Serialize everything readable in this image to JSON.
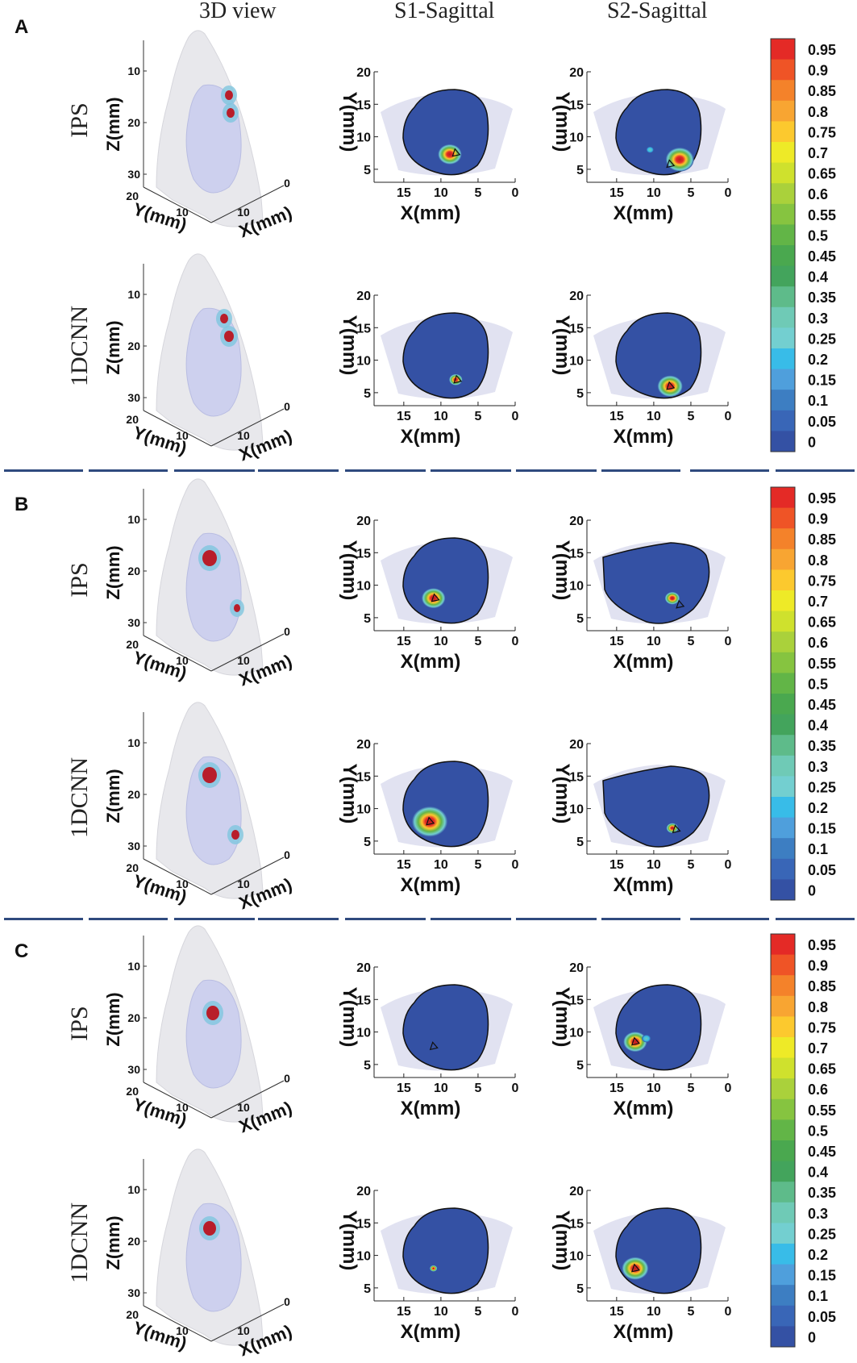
{
  "columns": [
    "3D view",
    "S1-Sagittal",
    "S2-Sagittal"
  ],
  "panels": [
    {
      "letter": "A",
      "rows": [
        {
          "method": "IPS",
          "s1": {
            "blobs": [
              {
                "cx": 8.8,
                "cy": 7.3,
                "r": 1.6
              }
            ],
            "mark": [
              8,
              7.5
            ]
          },
          "s2": {
            "blobs": [
              {
                "cx": 6.5,
                "cy": 6.5,
                "r": 1.9
              },
              {
                "cx": 10.5,
                "cy": 8.0,
                "r": 0.5,
                "weak": true
              }
            ],
            "mark": [
              7.8,
              5.8
            ]
          }
        },
        {
          "method": "1DCNN",
          "s1": {
            "blobs": [
              {
                "cx": 8.0,
                "cy": 7.0,
                "r": 0.9
              }
            ],
            "mark": [
              7.8,
              7.0
            ]
          },
          "s2": {
            "blobs": [
              {
                "cx": 7.8,
                "cy": 6.0,
                "r": 1.7
              }
            ],
            "mark": [
              7.8,
              6.0
            ]
          }
        }
      ]
    },
    {
      "letter": "B",
      "rows": [
        {
          "method": "IPS",
          "s1": {
            "blobs": [
              {
                "cx": 11.0,
                "cy": 8.0,
                "r": 1.6
              }
            ],
            "mark": [
              10.8,
              8.0
            ]
          },
          "s2": {
            "blobs": [
              {
                "cx": 7.5,
                "cy": 8.0,
                "r": 1.0
              }
            ],
            "mark": [
              6.5,
              7.0
            ]
          }
        },
        {
          "method": "1DCNN",
          "s1": {
            "blobs": [
              {
                "cx": 11.5,
                "cy": 8.0,
                "r": 2.4
              }
            ],
            "mark": [
              11.5,
              8.0
            ]
          },
          "s2": {
            "blobs": [
              {
                "cx": 7.5,
                "cy": 7.0,
                "r": 0.8
              }
            ],
            "mark": [
              7.0,
              6.8
            ]
          }
        }
      ]
    },
    {
      "letter": "C",
      "rows": [
        {
          "method": "IPS",
          "s1": {
            "blobs": [],
            "mark": [
              11.0,
              7.8
            ]
          },
          "s2": {
            "blobs": [
              {
                "cx": 12.5,
                "cy": 8.5,
                "r": 1.6
              },
              {
                "cx": 11.0,
                "cy": 9.0,
                "r": 0.6,
                "weak": true
              }
            ],
            "mark": [
              12.5,
              8.5
            ]
          }
        },
        {
          "method": "1DCNN",
          "s1": {
            "blobs": [
              {
                "cx": 11.0,
                "cy": 8.0,
                "r": 0.5
              }
            ],
            "mark": null
          },
          "s2": {
            "blobs": [
              {
                "cx": 12.5,
                "cy": 8.0,
                "r": 1.8
              }
            ],
            "mark": [
              12.5,
              8.0
            ]
          }
        }
      ]
    }
  ],
  "sagittal_axes": {
    "xlabel": "X(mm)",
    "ylabel": "Y(mm)",
    "xlim": [
      0,
      19
    ],
    "ylim": [
      3,
      20
    ],
    "xticks": [
      15,
      10,
      5,
      0
    ],
    "yticks": [
      5,
      10,
      15,
      20
    ]
  },
  "view3d_axes": {
    "zlabel": "Z(mm)",
    "ylabel": "Y(mm)",
    "xlabel": "X(mm)",
    "zticks": [
      10,
      20,
      30
    ],
    "yticks": [
      20,
      10
    ],
    "xticks": [
      10,
      0
    ]
  },
  "colorbar": {
    "labels": [
      "0.95",
      "0.9",
      "0.85",
      "0.8",
      "0.75",
      "0.7",
      "0.65",
      "0.6",
      "0.55",
      "0.5",
      "0.45",
      "0.4",
      "0.35",
      "0.3",
      "0.25",
      "0.2",
      "0.15",
      "0.1",
      "0.05",
      "0"
    ],
    "colors": [
      "#e42a26",
      "#ef5426",
      "#f4822a",
      "#f8a532",
      "#fcc92e",
      "#eeea27",
      "#cfe12d",
      "#aad13b",
      "#86c440",
      "#62b547",
      "#4aa84f",
      "#43a45c",
      "#5ebb8a",
      "#6fcab6",
      "#73cfd0",
      "#38bce8",
      "#4f9fdc",
      "#3d7ec2",
      "#3966b7",
      "#3451a4"
    ]
  },
  "colors": {
    "background_blue": "#3451a4",
    "shadow": "#c9cbe6",
    "divider": "#2f4a7e"
  }
}
